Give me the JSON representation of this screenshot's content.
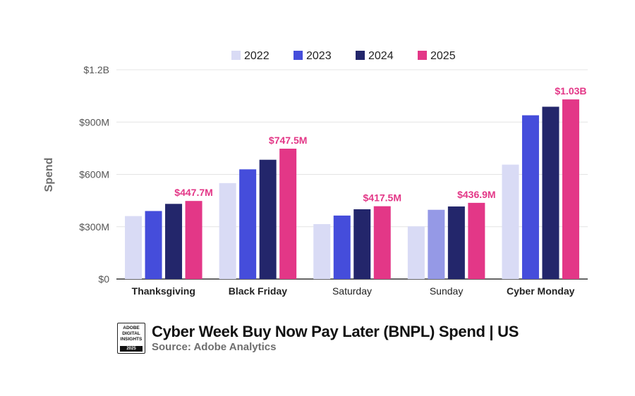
{
  "chart_data": {
    "type": "bar",
    "title": "Cyber Week Buy Now Pay Later (BNPL) Spend | US",
    "subtitle": "Source: Adobe Analytics",
    "xlabel": "",
    "ylabel": "Spend",
    "ylim": [
      0,
      1200
    ],
    "y_unit": "USD millions",
    "yticks": [
      {
        "value": 0,
        "label": "$0"
      },
      {
        "value": 300,
        "label": "$300M"
      },
      {
        "value": 600,
        "label": "$600M"
      },
      {
        "value": 900,
        "label": "$900M"
      },
      {
        "value": 1200,
        "label": "$1.2B"
      }
    ],
    "grid": true,
    "legend_position": "top",
    "categories": [
      "Thanksgiving",
      "Black Friday",
      "Saturday",
      "Sunday",
      "Cyber Monday"
    ],
    "category_bold": [
      true,
      true,
      false,
      false,
      true
    ],
    "series": [
      {
        "name": "2022",
        "color": "#d9dbf5",
        "values": [
          361,
          550,
          315,
          302,
          656
        ]
      },
      {
        "name": "2023",
        "color": "#454ddb",
        "values": [
          390,
          629,
          364,
          397,
          939
        ]
      },
      {
        "name": "2024",
        "color": "#23266b",
        "values": [
          431,
          684,
          400,
          416,
          988
        ]
      },
      {
        "name": "2025",
        "color": "#e33787",
        "values": [
          447.7,
          747.5,
          417.5,
          436.9,
          1030
        ]
      }
    ],
    "bar_color_overrides": [
      {
        "series": "2023",
        "category": "Sunday",
        "color": "#9599e6"
      }
    ],
    "data_labels": [
      "$447.7M",
      "$747.5M",
      "$417.5M",
      "$436.9M",
      "$1.03B"
    ]
  },
  "logo": {
    "lines": [
      "ADOBE",
      "DIGITAL",
      "INSIGHTS"
    ],
    "year": "2025"
  }
}
